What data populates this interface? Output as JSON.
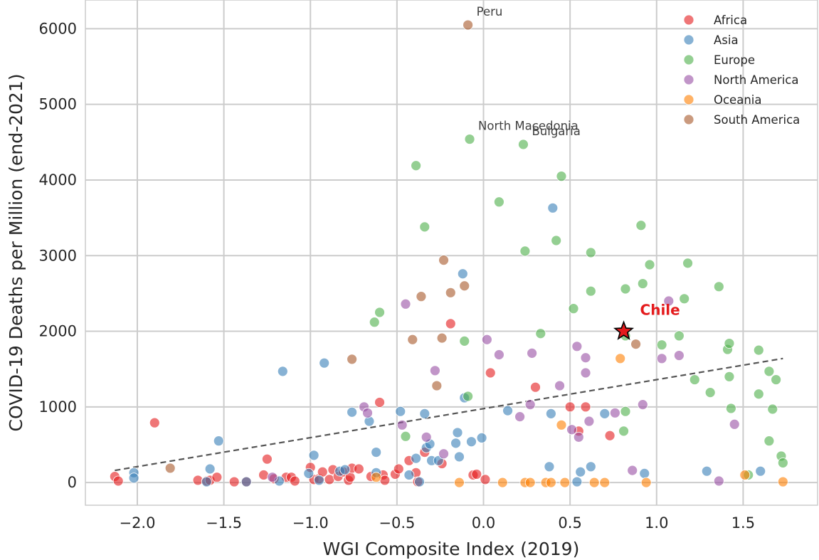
{
  "chart_data": {
    "type": "scatter",
    "xlabel": "WGI Composite Index (2019)",
    "ylabel": "COVID-19 Deaths per Million (end-2021)",
    "xlim": [
      -2.3,
      1.93
    ],
    "ylim": [
      -300,
      6380
    ],
    "xticks": [
      -2.0,
      -1.5,
      -1.0,
      -0.5,
      0.0,
      0.5,
      1.0,
      1.5
    ],
    "xtick_labels": [
      "−2.0",
      "−1.5",
      "−1.0",
      "−0.5",
      "0.0",
      "0.5",
      "1.0",
      "1.5"
    ],
    "yticks": [
      0,
      1000,
      2000,
      3000,
      4000,
      5000,
      6000
    ],
    "ytick_labels": [
      "0",
      "1000",
      "2000",
      "3000",
      "4000",
      "5000",
      "6000"
    ],
    "grid": true,
    "legend_position": "top-right",
    "series": [
      {
        "name": "Africa",
        "color": "#e41a1c",
        "points": [
          [
            -2.13,
            80
          ],
          [
            -2.11,
            20
          ],
          [
            -1.9,
            790
          ],
          [
            -1.65,
            30
          ],
          [
            -1.6,
            20
          ],
          [
            -1.58,
            30
          ],
          [
            -1.54,
            70
          ],
          [
            -1.44,
            10
          ],
          [
            -1.37,
            10
          ],
          [
            -1.27,
            100
          ],
          [
            -1.25,
            310
          ],
          [
            -1.21,
            50
          ],
          [
            -1.14,
            70
          ],
          [
            -1.11,
            70
          ],
          [
            -1.09,
            20
          ],
          [
            -1.0,
            200
          ],
          [
            -0.98,
            40
          ],
          [
            -0.95,
            50
          ],
          [
            -0.93,
            140
          ],
          [
            -0.89,
            40
          ],
          [
            -0.87,
            170
          ],
          [
            -0.84,
            80
          ],
          [
            -0.81,
            140
          ],
          [
            -0.78,
            30
          ],
          [
            -0.77,
            70
          ],
          [
            -0.76,
            190
          ],
          [
            -0.72,
            180
          ],
          [
            -0.65,
            80
          ],
          [
            -0.6,
            1060
          ],
          [
            -0.58,
            100
          ],
          [
            -0.57,
            30
          ],
          [
            -0.51,
            110
          ],
          [
            -0.49,
            180
          ],
          [
            -0.43,
            290
          ],
          [
            -0.39,
            130
          ],
          [
            -0.38,
            10
          ],
          [
            -0.34,
            400
          ],
          [
            -0.24,
            250
          ],
          [
            -0.19,
            2100
          ],
          [
            -0.06,
            100
          ],
          [
            -0.04,
            110
          ],
          [
            0.01,
            40
          ],
          [
            0.04,
            1450
          ],
          [
            0.3,
            1260
          ],
          [
            0.5,
            1000
          ],
          [
            0.55,
            680
          ],
          [
            0.59,
            1000
          ],
          [
            0.73,
            620
          ]
        ]
      },
      {
        "name": "Asia",
        "color": "#377eb8",
        "points": [
          [
            -2.02,
            130
          ],
          [
            -2.02,
            60
          ],
          [
            -1.58,
            180
          ],
          [
            -1.53,
            550
          ],
          [
            -1.6,
            10
          ],
          [
            -1.37,
            10
          ],
          [
            -1.18,
            20
          ],
          [
            -1.16,
            1470
          ],
          [
            -1.01,
            120
          ],
          [
            -0.98,
            360
          ],
          [
            -0.95,
            30
          ],
          [
            -0.92,
            1580
          ],
          [
            -0.83,
            150
          ],
          [
            -0.8,
            170
          ],
          [
            -0.76,
            930
          ],
          [
            -0.66,
            810
          ],
          [
            -0.62,
            400
          ],
          [
            -0.62,
            130
          ],
          [
            -0.48,
            940
          ],
          [
            -0.43,
            100
          ],
          [
            -0.39,
            320
          ],
          [
            -0.37,
            10
          ],
          [
            -0.34,
            910
          ],
          [
            -0.33,
            460
          ],
          [
            -0.31,
            510
          ],
          [
            -0.3,
            290
          ],
          [
            -0.26,
            290
          ],
          [
            -0.16,
            520
          ],
          [
            -0.15,
            660
          ],
          [
            -0.14,
            340
          ],
          [
            -0.12,
            2760
          ],
          [
            -0.11,
            1120
          ],
          [
            -0.07,
            540
          ],
          [
            -0.01,
            590
          ],
          [
            0.14,
            950
          ],
          [
            0.38,
            210
          ],
          [
            0.39,
            910
          ],
          [
            0.4,
            3630
          ],
          [
            0.54,
            10
          ],
          [
            0.56,
            140
          ],
          [
            0.62,
            210
          ],
          [
            0.7,
            910
          ],
          [
            0.93,
            120
          ],
          [
            1.29,
            150
          ],
          [
            1.6,
            150
          ]
        ]
      },
      {
        "name": "Europe",
        "color": "#4daf4a",
        "points": [
          [
            -0.39,
            4190
          ],
          [
            -0.63,
            2120
          ],
          [
            -0.6,
            2250
          ],
          [
            -0.34,
            3380
          ],
          [
            -0.45,
            610
          ],
          [
            -0.11,
            1870
          ],
          [
            -0.09,
            1140
          ],
          [
            -0.08,
            4540
          ],
          [
            0.09,
            3710
          ],
          [
            0.23,
            4470
          ],
          [
            0.24,
            3060
          ],
          [
            0.33,
            1970
          ],
          [
            0.42,
            3200
          ],
          [
            0.45,
            4050
          ],
          [
            0.52,
            2300
          ],
          [
            0.62,
            2530
          ],
          [
            0.62,
            3040
          ],
          [
            0.81,
            680
          ],
          [
            0.82,
            940
          ],
          [
            0.82,
            2560
          ],
          [
            0.82,
            1940
          ],
          [
            0.91,
            3400
          ],
          [
            0.92,
            2630
          ],
          [
            0.96,
            2880
          ],
          [
            1.03,
            1820
          ],
          [
            1.13,
            1940
          ],
          [
            1.16,
            2430
          ],
          [
            1.18,
            2900
          ],
          [
            1.22,
            1360
          ],
          [
            1.31,
            1190
          ],
          [
            1.36,
            2590
          ],
          [
            1.41,
            1760
          ],
          [
            1.42,
            1840
          ],
          [
            1.42,
            1400
          ],
          [
            1.43,
            980
          ],
          [
            1.53,
            100
          ],
          [
            1.59,
            1750
          ],
          [
            1.59,
            1170
          ],
          [
            1.65,
            1470
          ],
          [
            1.65,
            550
          ],
          [
            1.67,
            970
          ],
          [
            1.69,
            1360
          ],
          [
            1.72,
            350
          ],
          [
            1.73,
            260
          ]
        ]
      },
      {
        "name": "North America",
        "color": "#984ea3",
        "points": [
          [
            -1.22,
            70
          ],
          [
            -0.69,
            1000
          ],
          [
            -0.67,
            920
          ],
          [
            -0.47,
            760
          ],
          [
            -0.45,
            2360
          ],
          [
            -0.33,
            600
          ],
          [
            -0.28,
            1480
          ],
          [
            -0.23,
            380
          ],
          [
            0.02,
            1890
          ],
          [
            0.09,
            1690
          ],
          [
            0.21,
            870
          ],
          [
            0.27,
            1030
          ],
          [
            0.28,
            1710
          ],
          [
            0.44,
            1280
          ],
          [
            0.51,
            700
          ],
          [
            0.54,
            1800
          ],
          [
            0.55,
            600
          ],
          [
            0.59,
            1650
          ],
          [
            0.59,
            1450
          ],
          [
            0.61,
            810
          ],
          [
            0.76,
            920
          ],
          [
            0.86,
            160
          ],
          [
            0.92,
            1030
          ],
          [
            1.03,
            1640
          ],
          [
            1.07,
            2400
          ],
          [
            1.13,
            1680
          ],
          [
            1.36,
            20
          ],
          [
            1.45,
            770
          ]
        ]
      },
      {
        "name": "Oceania",
        "color": "#ff7f00",
        "points": [
          [
            -0.62,
            70
          ],
          [
            -0.14,
            0
          ],
          [
            0.11,
            0
          ],
          [
            0.24,
            0
          ],
          [
            0.27,
            0
          ],
          [
            0.36,
            0
          ],
          [
            0.39,
            0
          ],
          [
            0.45,
            760
          ],
          [
            0.47,
            0
          ],
          [
            0.64,
            0
          ],
          [
            0.7,
            0
          ],
          [
            0.79,
            1640
          ],
          [
            0.94,
            0
          ],
          [
            1.51,
            100
          ],
          [
            1.73,
            10
          ]
        ]
      },
      {
        "name": "South America",
        "color": "#a65628",
        "points": [
          [
            -1.81,
            190
          ],
          [
            -0.76,
            1630
          ],
          [
            -0.41,
            1890
          ],
          [
            -0.36,
            2460
          ],
          [
            -0.27,
            1280
          ],
          [
            -0.24,
            1910
          ],
          [
            -0.23,
            2940
          ],
          [
            -0.19,
            2510
          ],
          [
            -0.11,
            2600
          ],
          [
            -0.09,
            6050
          ],
          [
            0.88,
            1830
          ]
        ]
      }
    ],
    "trendline": {
      "x": [
        -2.13,
        1.73
      ],
      "y": [
        160,
        1640
      ],
      "style": "dashed"
    },
    "annotations": [
      {
        "text": "Peru",
        "x": -0.09,
        "y": 6050
      },
      {
        "text": "North Macedonia",
        "x": -0.08,
        "y": 4540
      },
      {
        "text": "Bulgaria",
        "x": 0.23,
        "y": 4470
      }
    ],
    "highlight": {
      "text": "Chile",
      "x": 0.81,
      "y": 2000,
      "marker": "star",
      "color": "#e41a1c"
    }
  }
}
